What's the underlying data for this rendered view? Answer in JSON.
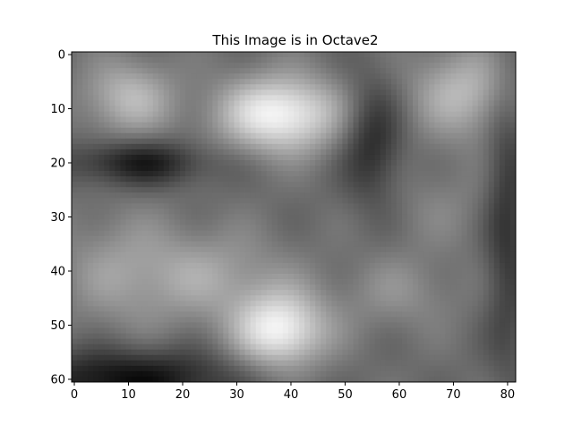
{
  "chart_data": {
    "type": "heatmap",
    "title": "This Image is in Octave2",
    "xlabel": "",
    "ylabel": "",
    "colormap": "gray",
    "image_size": {
      "cols": 82,
      "rows": 61
    },
    "xlim": [
      -0.5,
      81.5
    ],
    "ylim": [
      60.5,
      -0.5
    ],
    "y_axis_inverted": true,
    "grid": false,
    "x_ticks": [
      0,
      10,
      20,
      30,
      40,
      50,
      60,
      70,
      80
    ],
    "y_ticks": [
      0,
      10,
      20,
      30,
      40,
      50,
      60
    ],
    "features": [
      {
        "kind": "bright",
        "x": 38,
        "y": 11,
        "sx": 8,
        "sy": 5,
        "value": 0.97
      },
      {
        "kind": "bright",
        "x": 10,
        "y": 8,
        "sx": 6,
        "sy": 5,
        "value": 0.72
      },
      {
        "kind": "bright",
        "x": 72,
        "y": 7,
        "sx": 7,
        "sy": 6,
        "value": 0.72
      },
      {
        "kind": "bright",
        "x": 38,
        "y": 51,
        "sx": 6,
        "sy": 5,
        "value": 0.95
      },
      {
        "kind": "mid",
        "x": 25,
        "y": 41,
        "sx": 10,
        "sy": 6,
        "value": 0.63
      },
      {
        "kind": "mid",
        "x": 8,
        "y": 40,
        "sx": 8,
        "sy": 8,
        "value": 0.58
      },
      {
        "kind": "mid",
        "x": 60,
        "y": 44,
        "sx": 8,
        "sy": 5,
        "value": 0.55
      },
      {
        "kind": "mid",
        "x": 68,
        "y": 28,
        "sx": 8,
        "sy": 6,
        "value": 0.5
      },
      {
        "kind": "dark",
        "x": 12,
        "y": 20,
        "sx": 9,
        "sy": 3,
        "value": 0.1
      },
      {
        "kind": "dark",
        "x": 55,
        "y": 16,
        "sx": 4,
        "sy": 8,
        "value": 0.15
      },
      {
        "kind": "dark",
        "x": 10,
        "y": 60,
        "sx": 14,
        "sy": 4,
        "value": 0.05
      },
      {
        "kind": "dark",
        "x": 80,
        "y": 30,
        "sx": 3,
        "sy": 20,
        "value": 0.2
      }
    ]
  }
}
